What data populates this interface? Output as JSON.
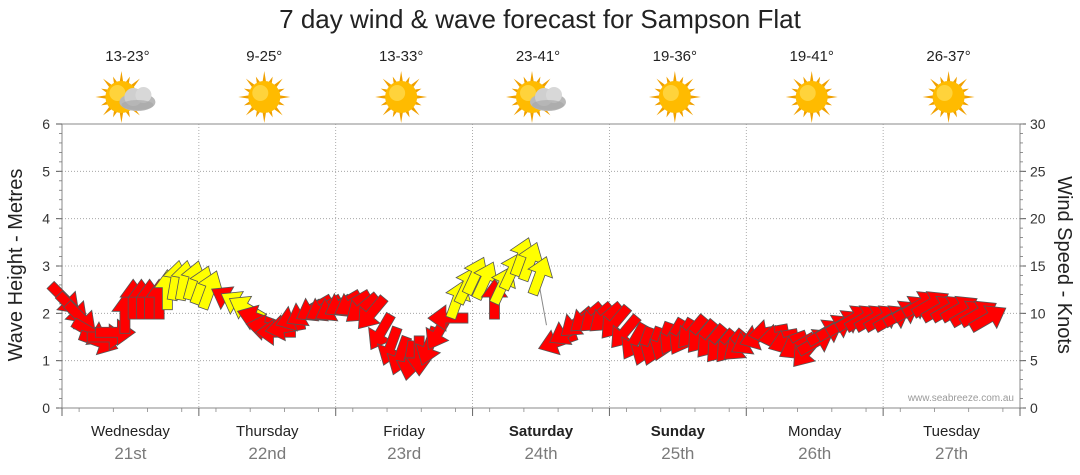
{
  "title": "7 day wind & wave forecast for Sampson Flat",
  "watermark": "www.seabreeze.com.au",
  "days": [
    {
      "name": "Wednesday",
      "date": "21st",
      "bold": false,
      "temp": "13-23°",
      "weather": "partly-cloudy-icon"
    },
    {
      "name": "Thursday",
      "date": "22nd",
      "bold": false,
      "temp": "9-25°",
      "weather": "sunny-icon"
    },
    {
      "name": "Friday",
      "date": "23rd",
      "bold": false,
      "temp": "13-33°",
      "weather": "sunny-icon"
    },
    {
      "name": "Saturday",
      "date": "24th",
      "bold": true,
      "temp": "23-41°",
      "weather": "partly-cloudy-icon"
    },
    {
      "name": "Sunday",
      "date": "25th",
      "bold": true,
      "temp": "19-36°",
      "weather": "sunny-icon"
    },
    {
      "name": "Monday",
      "date": "26th",
      "bold": false,
      "temp": "19-41°",
      "weather": "sunny-icon"
    },
    {
      "name": "Tuesday",
      "date": "27th",
      "bold": false,
      "temp": "26-37°",
      "weather": "sunny-icon"
    }
  ],
  "chart_data": {
    "type": "line",
    "title": "7 day wind & wave forecast for Sampson Flat",
    "y_left": {
      "label": "Wave Height - Metres",
      "range": [
        0,
        6
      ],
      "ticks": [
        "0",
        "1",
        "2",
        "3",
        "4",
        "5",
        "6"
      ]
    },
    "y_right": {
      "label": "Wind Speed - Knots",
      "range": [
        0,
        30
      ],
      "ticks": [
        "0",
        "5",
        "10",
        "15",
        "20",
        "25",
        "30"
      ]
    },
    "x_categories": [
      "Wednesday 21st",
      "Thursday 22nd",
      "Friday 23rd",
      "Saturday 24th",
      "Sunday 25th",
      "Monday 26th",
      "Tuesday 27th"
    ],
    "grid": true,
    "colors": {
      "moderate_wind": "#ff0000",
      "light_wind": "#ffff00",
      "arrow_outline": "#555555"
    },
    "series": [
      {
        "name": "Wind Speed - Knots",
        "unit": "knots",
        "points": [
          {
            "day": 0.0,
            "speed": 11.5,
            "dir": 135,
            "color": "red"
          },
          {
            "day": 0.06,
            "speed": 10.5,
            "dir": 135,
            "color": "red"
          },
          {
            "day": 0.12,
            "speed": 9.5,
            "dir": 135,
            "color": "red"
          },
          {
            "day": 0.19,
            "speed": 8.0,
            "dir": 120,
            "color": "red"
          },
          {
            "day": 0.25,
            "speed": 7.0,
            "dir": 110,
            "color": "red"
          },
          {
            "day": 0.31,
            "speed": 7.5,
            "dir": 90,
            "color": "red"
          },
          {
            "day": 0.37,
            "speed": 8.0,
            "dir": 90,
            "color": "red"
          },
          {
            "day": 0.44,
            "speed": 10.0,
            "dir": 0,
            "color": "red"
          },
          {
            "day": 0.5,
            "speed": 11.5,
            "dir": 0,
            "color": "red"
          },
          {
            "day": 0.56,
            "speed": 11.5,
            "dir": 0,
            "color": "red"
          },
          {
            "day": 0.62,
            "speed": 11.5,
            "dir": 0,
            "color": "red"
          },
          {
            "day": 0.69,
            "speed": 11.5,
            "dir": 0,
            "color": "red"
          },
          {
            "day": 0.75,
            "speed": 12.5,
            "dir": 0,
            "color": "yellow"
          },
          {
            "day": 0.81,
            "speed": 13.5,
            "dir": 10,
            "color": "yellow"
          },
          {
            "day": 0.87,
            "speed": 13.5,
            "dir": 10,
            "color": "yellow"
          },
          {
            "day": 0.94,
            "speed": 13.5,
            "dir": 15,
            "color": "yellow"
          },
          {
            "day": 1.0,
            "speed": 13.0,
            "dir": 20,
            "color": "yellow"
          },
          {
            "day": 1.06,
            "speed": 12.5,
            "dir": 20,
            "color": "yellow"
          },
          {
            "day": 1.2,
            "speed": 11.5,
            "dir": 300,
            "color": "red"
          },
          {
            "day": 1.27,
            "speed": 11.0,
            "dir": 300,
            "color": "yellow"
          },
          {
            "day": 1.33,
            "speed": 10.5,
            "dir": 300,
            "color": "yellow"
          },
          {
            "day": 1.4,
            "speed": 9.5,
            "dir": 290,
            "color": "red"
          },
          {
            "day": 1.47,
            "speed": 8.5,
            "dir": 280,
            "color": "red"
          },
          {
            "day": 1.54,
            "speed": 8.0,
            "dir": 270,
            "color": "red"
          },
          {
            "day": 1.61,
            "speed": 8.5,
            "dir": 260,
            "color": "red"
          },
          {
            "day": 1.68,
            "speed": 9.5,
            "dir": 250,
            "color": "red"
          },
          {
            "day": 1.75,
            "speed": 10.0,
            "dir": 240,
            "color": "red"
          },
          {
            "day": 1.82,
            "speed": 10.5,
            "dir": 240,
            "color": "red"
          },
          {
            "day": 1.89,
            "speed": 10.5,
            "dir": 240,
            "color": "red"
          },
          {
            "day": 1.96,
            "speed": 10.5,
            "dir": 240,
            "color": "red"
          },
          {
            "day": 2.03,
            "speed": 11.0,
            "dir": 240,
            "color": "red"
          },
          {
            "day": 2.1,
            "speed": 11.0,
            "dir": 240,
            "color": "red"
          },
          {
            "day": 2.17,
            "speed": 10.5,
            "dir": 230,
            "color": "red"
          },
          {
            "day": 2.24,
            "speed": 10.0,
            "dir": 220,
            "color": "red"
          },
          {
            "day": 2.31,
            "speed": 8.0,
            "dir": 210,
            "color": "red"
          },
          {
            "day": 2.38,
            "speed": 6.5,
            "dir": 200,
            "color": "red"
          },
          {
            "day": 2.45,
            "speed": 5.5,
            "dir": 200,
            "color": "red"
          },
          {
            "day": 2.52,
            "speed": 5.0,
            "dir": 190,
            "color": "red"
          },
          {
            "day": 2.59,
            "speed": 5.5,
            "dir": 180,
            "color": "red"
          },
          {
            "day": 2.66,
            "speed": 6.5,
            "dir": 200,
            "color": "red"
          },
          {
            "day": 2.73,
            "speed": 8.0,
            "dir": 210,
            "color": "red"
          },
          {
            "day": 2.8,
            "speed": 9.5,
            "dir": 270,
            "color": "red"
          },
          {
            "day": 2.87,
            "speed": 11.5,
            "dir": 20,
            "color": "yellow"
          },
          {
            "day": 2.94,
            "speed": 13.0,
            "dir": 25,
            "color": "yellow"
          },
          {
            "day": 3.0,
            "speed": 14.0,
            "dir": 25,
            "color": "yellow"
          },
          {
            "day": 3.07,
            "speed": 13.5,
            "dir": 25,
            "color": "yellow"
          },
          {
            "day": 3.14,
            "speed": 11.5,
            "dir": 0,
            "color": "red"
          },
          {
            "day": 3.2,
            "speed": 13.0,
            "dir": 25,
            "color": "yellow"
          },
          {
            "day": 3.27,
            "speed": 14.5,
            "dir": 25,
            "color": "yellow"
          },
          {
            "day": 3.34,
            "speed": 16.0,
            "dir": 20,
            "color": "yellow"
          },
          {
            "day": 3.4,
            "speed": 15.5,
            "dir": 20,
            "color": "yellow"
          },
          {
            "day": 3.47,
            "speed": 14.0,
            "dir": 20,
            "color": "yellow"
          },
          {
            "day": 3.6,
            "speed": 7.0,
            "dir": 250,
            "color": "red"
          },
          {
            "day": 3.67,
            "speed": 8.0,
            "dir": 240,
            "color": "red"
          },
          {
            "day": 3.74,
            "speed": 9.0,
            "dir": 230,
            "color": "red"
          },
          {
            "day": 3.81,
            "speed": 9.5,
            "dir": 230,
            "color": "red"
          },
          {
            "day": 3.88,
            "speed": 9.5,
            "dir": 230,
            "color": "red"
          },
          {
            "day": 3.95,
            "speed": 9.5,
            "dir": 230,
            "color": "red"
          },
          {
            "day": 4.02,
            "speed": 9.0,
            "dir": 220,
            "color": "red"
          },
          {
            "day": 4.09,
            "speed": 8.0,
            "dir": 220,
            "color": "red"
          },
          {
            "day": 4.16,
            "speed": 7.0,
            "dir": 210,
            "color": "red"
          },
          {
            "day": 4.23,
            "speed": 6.5,
            "dir": 200,
            "color": "red"
          },
          {
            "day": 4.3,
            "speed": 6.5,
            "dir": 200,
            "color": "red"
          },
          {
            "day": 4.37,
            "speed": 7.0,
            "dir": 200,
            "color": "red"
          },
          {
            "day": 4.44,
            "speed": 7.5,
            "dir": 210,
            "color": "red"
          },
          {
            "day": 4.51,
            "speed": 7.5,
            "dir": 210,
            "color": "red"
          },
          {
            "day": 4.58,
            "speed": 8.0,
            "dir": 220,
            "color": "red"
          },
          {
            "day": 4.65,
            "speed": 7.5,
            "dir": 220,
            "color": "red"
          },
          {
            "day": 4.72,
            "speed": 7.0,
            "dir": 220,
            "color": "red"
          },
          {
            "day": 4.79,
            "speed": 6.5,
            "dir": 220,
            "color": "red"
          },
          {
            "day": 4.86,
            "speed": 6.5,
            "dir": 220,
            "color": "red"
          },
          {
            "day": 4.93,
            "speed": 6.5,
            "dir": 230,
            "color": "red"
          },
          {
            "day": 5.0,
            "speed": 7.0,
            "dir": 240,
            "color": "red"
          },
          {
            "day": 5.07,
            "speed": 7.5,
            "dir": 250,
            "color": "red"
          },
          {
            "day": 5.14,
            "speed": 8.0,
            "dir": 260,
            "color": "red"
          },
          {
            "day": 5.21,
            "speed": 7.5,
            "dir": 260,
            "color": "red"
          },
          {
            "day": 5.28,
            "speed": 7.0,
            "dir": 250,
            "color": "red"
          },
          {
            "day": 5.35,
            "speed": 6.5,
            "dir": 240,
            "color": "red"
          },
          {
            "day": 5.42,
            "speed": 6.0,
            "dir": 220,
            "color": "red"
          },
          {
            "day": 5.49,
            "speed": 7.0,
            "dir": 60,
            "color": "red"
          },
          {
            "day": 5.56,
            "speed": 8.0,
            "dir": 60,
            "color": "red"
          },
          {
            "day": 5.63,
            "speed": 8.5,
            "dir": 60,
            "color": "red"
          },
          {
            "day": 5.7,
            "speed": 9.0,
            "dir": 60,
            "color": "red"
          },
          {
            "day": 5.77,
            "speed": 9.5,
            "dir": 60,
            "color": "red"
          },
          {
            "day": 5.84,
            "speed": 9.5,
            "dir": 60,
            "color": "red"
          },
          {
            "day": 5.91,
            "speed": 9.5,
            "dir": 60,
            "color": "red"
          },
          {
            "day": 5.98,
            "speed": 9.5,
            "dir": 60,
            "color": "red"
          },
          {
            "day": 6.05,
            "speed": 9.5,
            "dir": 60,
            "color": "red"
          },
          {
            "day": 6.12,
            "speed": 10.0,
            "dir": 60,
            "color": "red"
          },
          {
            "day": 6.19,
            "speed": 10.5,
            "dir": 60,
            "color": "red"
          },
          {
            "day": 6.26,
            "speed": 11.0,
            "dir": 60,
            "color": "red"
          },
          {
            "day": 6.33,
            "speed": 11.0,
            "dir": 60,
            "color": "red"
          },
          {
            "day": 6.4,
            "speed": 10.5,
            "dir": 60,
            "color": "red"
          },
          {
            "day": 6.47,
            "speed": 10.5,
            "dir": 60,
            "color": "red"
          },
          {
            "day": 6.54,
            "speed": 10.5,
            "dir": 60,
            "color": "red"
          },
          {
            "day": 6.61,
            "speed": 10.0,
            "dir": 60,
            "color": "red"
          },
          {
            "day": 6.68,
            "speed": 10.0,
            "dir": 60,
            "color": "red"
          },
          {
            "day": 6.75,
            "speed": 9.5,
            "dir": 60,
            "color": "red"
          }
        ]
      },
      {
        "name": "Wave Height - Metres",
        "unit": "m",
        "points": [
          {
            "day": 3.47,
            "height": 2.55
          },
          {
            "day": 3.52,
            "height": 1.75
          }
        ]
      }
    ]
  }
}
